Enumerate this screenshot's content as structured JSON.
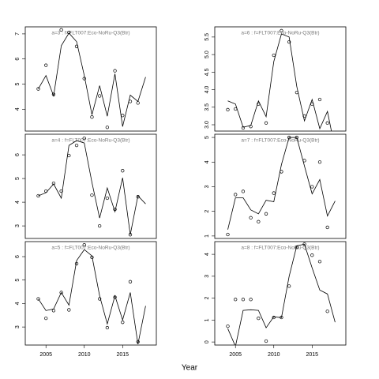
{
  "xlabel": "Year",
  "chart_data": [
    {
      "type": "line",
      "title": "a=3  :  f=FLT007:Eco-NoRu-Q3(Btr)",
      "x": [
        2004,
        2005,
        2006,
        2007,
        2008,
        2009,
        2010,
        2011,
        2012,
        2013,
        2014,
        2015,
        2016,
        2017,
        2018
      ],
      "series": [
        {
          "style": "points",
          "values": [
            4.81,
            5.75,
            4.59,
            7.16,
            7.06,
            6.5,
            5.22,
            3.69,
            4.53,
            3.28,
            5.53,
            3.75,
            4.31,
            4.25,
            null
          ]
        },
        {
          "style": "line",
          "values": [
            4.81,
            5.34,
            4.53,
            6.53,
            7.03,
            6.69,
            5.34,
            3.78,
            4.94,
            3.72,
            5.41,
            3.31,
            4.56,
            4.31,
            5.28
          ]
        }
      ],
      "xlim": [
        2002.3,
        2019.4
      ],
      "ylim": [
        3.13,
        7.28
      ],
      "yticks": [
        4,
        5,
        6,
        7
      ]
    },
    {
      "type": "line",
      "title": "a=4  :  f=FLT007:Eco-NoRu-Q3(Btr)",
      "x": [
        2004,
        2005,
        2006,
        2007,
        2008,
        2009,
        2010,
        2011,
        2012,
        2013,
        2014,
        2015,
        2016,
        2017,
        2018
      ],
      "series": [
        {
          "style": "points",
          "values": [
            4.27,
            4.47,
            4.8,
            4.47,
            5.97,
            6.4,
            6.7,
            4.3,
            3.0,
            4.17,
            3.7,
            5.33,
            2.63,
            4.23,
            null
          ]
        },
        {
          "style": "line",
          "values": [
            4.27,
            4.4,
            4.77,
            4.17,
            6.4,
            6.6,
            6.5,
            4.83,
            3.33,
            4.6,
            3.6,
            5.03,
            2.63,
            4.27,
            3.93
          ]
        }
      ],
      "xlim": [
        2002.3,
        2019.4
      ],
      "ylim": [
        2.47,
        6.87
      ],
      "yticks": [
        3,
        4,
        5,
        6
      ]
    },
    {
      "type": "line",
      "title": "a=5  :  f=FLT007:Eco-NoRu-Q3(Btr)",
      "x": [
        2004,
        2005,
        2006,
        2007,
        2008,
        2009,
        2010,
        2011,
        2012,
        2013,
        2014,
        2015,
        2016,
        2017,
        2018
      ],
      "series": [
        {
          "style": "points",
          "values": [
            4.2,
            3.37,
            3.7,
            4.47,
            3.73,
            5.7,
            6.5,
            5.97,
            4.2,
            2.97,
            4.27,
            3.2,
            4.93,
            2.37,
            null
          ]
        },
        {
          "style": "line",
          "values": [
            4.2,
            3.7,
            3.77,
            4.47,
            3.93,
            5.83,
            6.3,
            6.03,
            4.33,
            3.13,
            4.33,
            3.3,
            4.47,
            2.27,
            3.9
          ]
        }
      ],
      "xlim": [
        2002.3,
        2019.4
      ],
      "ylim": [
        2.23,
        6.64
      ],
      "yticks": [
        3,
        4,
        5,
        6
      ],
      "xticks": [
        2005,
        2010,
        2015
      ]
    },
    {
      "type": "line",
      "title": "a=6  :  f=FLT007:Eco-NoRu-Q3(Btr)",
      "x": [
        2004,
        2005,
        2006,
        2007,
        2008,
        2009,
        2010,
        2011,
        2012,
        2013,
        2014,
        2015,
        2016,
        2017,
        2018
      ],
      "series": [
        {
          "style": "points",
          "values": [
            3.43,
            3.45,
            2.91,
            2.95,
            3.59,
            3.05,
            4.98,
            5.68,
            5.36,
            3.92,
            3.25,
            3.59,
            3.72,
            3.05,
            null
          ]
        },
        {
          "style": "line",
          "values": [
            3.68,
            3.59,
            2.93,
            2.98,
            3.68,
            3.23,
            4.8,
            5.59,
            5.5,
            4.09,
            3.11,
            3.72,
            2.89,
            3.38,
            2.3
          ]
        }
      ],
      "xlim": [
        2002.3,
        2019.4
      ],
      "ylim": [
        2.82,
        5.79
      ],
      "yticks": [
        {
          "value": 3,
          "label": "3.0"
        },
        3.5,
        {
          "value": 4,
          "label": "4.0"
        },
        4.5,
        {
          "value": 5,
          "label": "5.0"
        },
        5.5
      ]
    },
    {
      "type": "line",
      "title": "a=7  :  f=FLT007:Eco-NoRu-Q3(Btr)",
      "x": [
        2004,
        2005,
        2006,
        2007,
        2008,
        2009,
        2010,
        2011,
        2012,
        2013,
        2014,
        2015,
        2016,
        2017,
        2018
      ],
      "series": [
        {
          "style": "points",
          "values": [
            1.06,
            2.68,
            2.81,
            1.74,
            1.58,
            1.9,
            2.74,
            3.61,
            5.0,
            5.0,
            4.06,
            3.0,
            4.0,
            1.35,
            null
          ]
        },
        {
          "style": "line",
          "values": [
            1.26,
            2.55,
            2.55,
            2.06,
            1.9,
            2.45,
            2.39,
            3.9,
            5.0,
            5.0,
            3.84,
            2.71,
            3.29,
            1.81,
            2.42
          ]
        }
      ],
      "xlim": [
        2002.3,
        2019.4
      ],
      "ylim": [
        0.9,
        5.13
      ],
      "yticks": [
        1,
        2,
        3,
        4,
        5
      ]
    },
    {
      "type": "line",
      "title": "a=8  :  f=FLT007:Eco-NoRu-Q3(Btr)",
      "x": [
        2004,
        2005,
        2006,
        2007,
        2008,
        2009,
        2010,
        2011,
        2012,
        2013,
        2014,
        2015,
        2016,
        2017,
        2018
      ],
      "series": [
        {
          "style": "points",
          "values": [
            0.72,
            1.94,
            1.94,
            1.94,
            1.08,
            0.04,
            1.12,
            1.12,
            2.55,
            4.32,
            4.46,
            3.96,
            3.67,
            1.4,
            null
          ]
        },
        {
          "style": "line",
          "values": [
            0.61,
            -0.2,
            1.44,
            1.47,
            1.44,
            0.65,
            1.15,
            1.11,
            2.99,
            4.39,
            4.46,
            3.38,
            2.37,
            2.19,
            0.9
          ]
        }
      ],
      "xlim": [
        2002.3,
        2019.4
      ],
      "ylim": [
        -0.14,
        4.58
      ],
      "yticks": [
        0,
        1,
        2,
        3,
        4
      ],
      "xticks": [
        2005,
        2010,
        2015
      ]
    }
  ]
}
